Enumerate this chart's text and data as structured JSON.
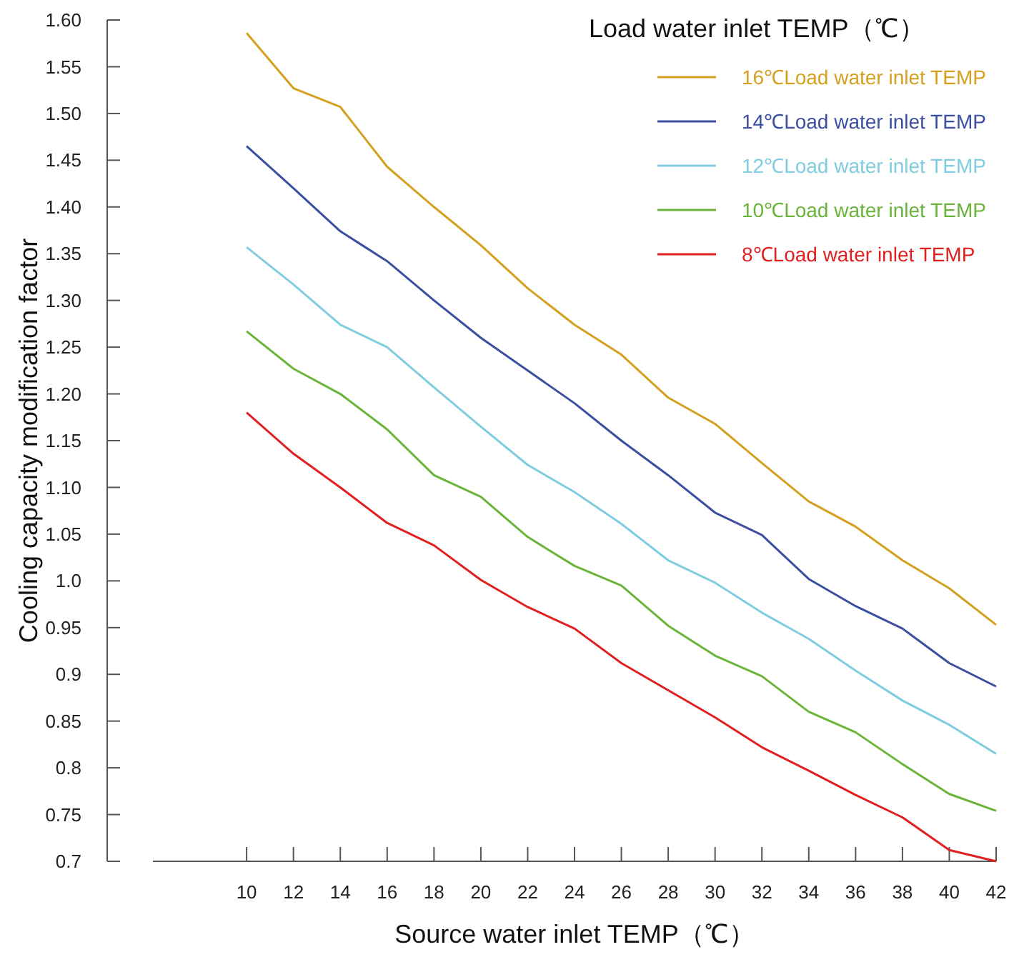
{
  "chart_data": {
    "type": "line",
    "xlabel": "Source water inlet TEMP（℃）",
    "ylabel": "Cooling capacity modification factor",
    "legend_title": "Load water inlet TEMP（℃）",
    "x": [
      10,
      12,
      14,
      16,
      18,
      20,
      22,
      24,
      26,
      28,
      30,
      32,
      34,
      36,
      38,
      40,
      42
    ],
    "xlim": [
      6,
      42
    ],
    "xticks": [
      10,
      12,
      14,
      16,
      18,
      20,
      22,
      24,
      26,
      28,
      30,
      32,
      34,
      36,
      38,
      40,
      42
    ],
    "ylim": [
      0.7,
      1.6
    ],
    "yticks": [
      {
        "value": 1.6,
        "label": "1.60"
      },
      1.55,
      {
        "value": 1.5,
        "label": "1.50"
      },
      1.45,
      {
        "value": 1.4,
        "label": "1.40"
      },
      1.35,
      {
        "value": 1.3,
        "label": "1.30"
      },
      1.25,
      {
        "value": 1.2,
        "label": "1.20"
      },
      1.15,
      {
        "value": 1.1,
        "label": "1.10"
      },
      1.05,
      {
        "value": 1.0,
        "label": "1.0"
      },
      0.95,
      0.9,
      0.85,
      0.8,
      0.75,
      0.7
    ],
    "grid": false,
    "legend": "top right",
    "marker": "none",
    "line_style": "solid",
    "series": [
      {
        "name": "16℃Load water inlet TEMP",
        "color": "#d4a020",
        "values": [
          1.586,
          1.527,
          1.507,
          1.443,
          1.4,
          1.359,
          1.313,
          1.274,
          1.242,
          1.196,
          1.168,
          1.126,
          1.085,
          1.058,
          1.022,
          0.992,
          0.953
        ]
      },
      {
        "name": "14℃Load water inlet TEMP",
        "color": "#3a4fa0",
        "values": [
          1.465,
          1.42,
          1.374,
          1.342,
          1.3,
          1.26,
          1.225,
          1.19,
          1.15,
          1.113,
          1.073,
          1.049,
          1.002,
          0.973,
          0.949,
          0.912,
          0.887
        ]
      },
      {
        "name": "12℃Load water inlet TEMP",
        "color": "#80cce0",
        "values": [
          1.357,
          1.317,
          1.274,
          1.25,
          1.207,
          1.165,
          1.124,
          1.095,
          1.061,
          1.022,
          0.998,
          0.966,
          0.938,
          0.904,
          0.872,
          0.846,
          0.815
        ]
      },
      {
        "name": "10℃Load water inlet TEMP",
        "color": "#6ab43a",
        "values": [
          1.267,
          1.227,
          1.2,
          1.162,
          1.113,
          1.09,
          1.047,
          1.016,
          0.995,
          0.952,
          0.92,
          0.898,
          0.86,
          0.838,
          0.804,
          0.772,
          0.754
        ]
      },
      {
        "name": "8℃Load water inlet TEMP",
        "color": "#e02020",
        "values": [
          1.18,
          1.136,
          1.1,
          1.062,
          1.038,
          1.001,
          0.972,
          0.949,
          0.912,
          0.883,
          0.854,
          0.822,
          0.797,
          0.771,
          0.747,
          0.712,
          0.7
        ]
      }
    ]
  }
}
